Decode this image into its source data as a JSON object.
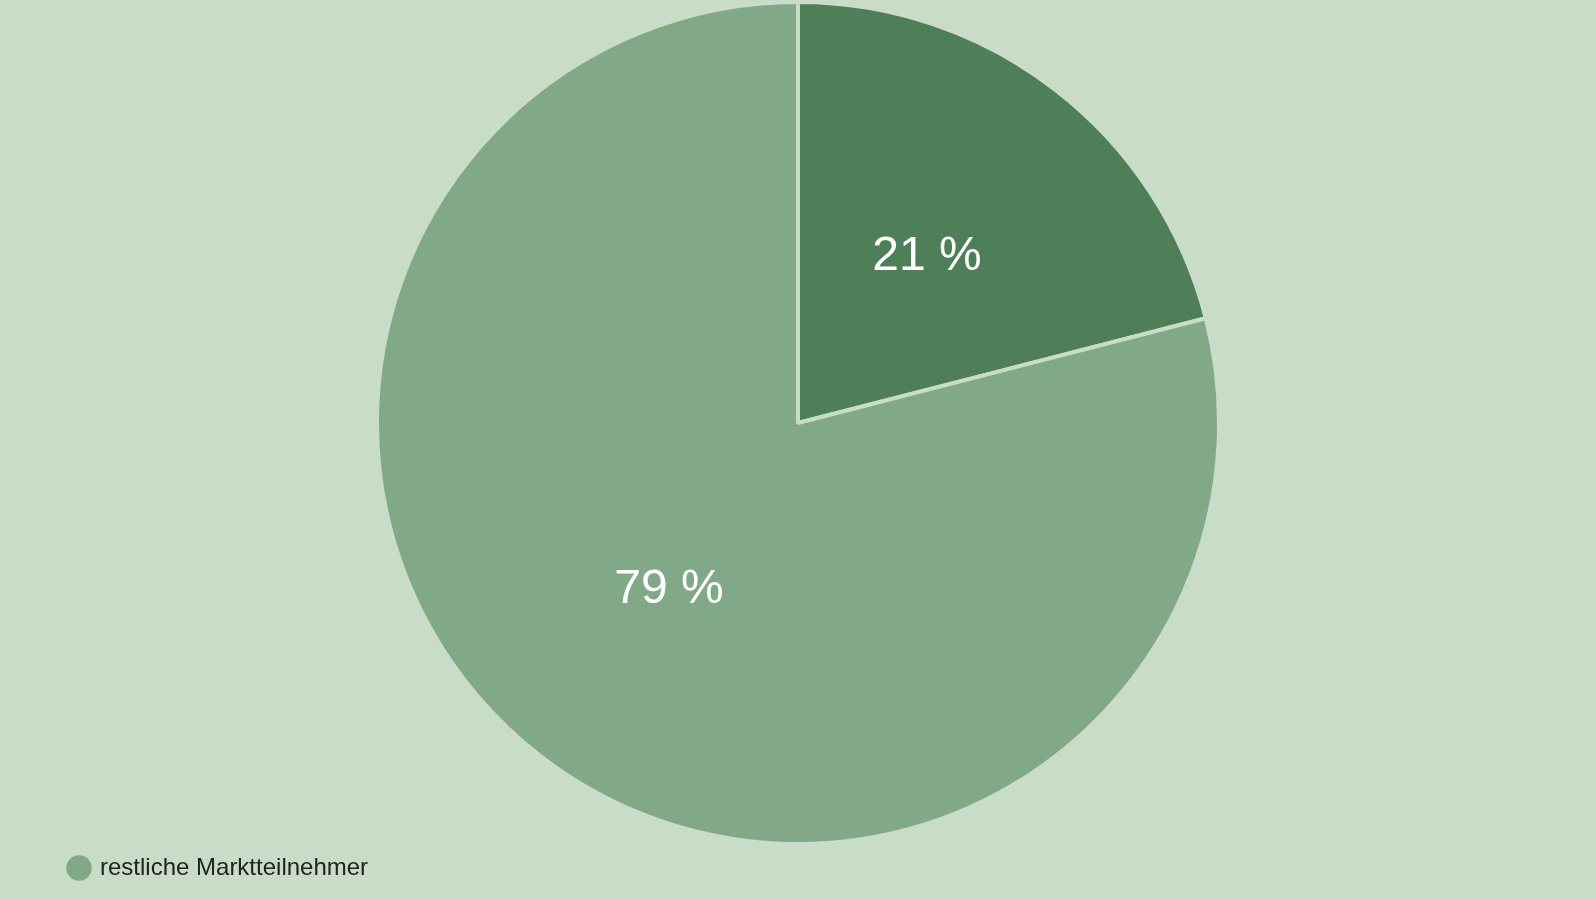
{
  "chart_data": {
    "type": "pie",
    "categories": [
      null,
      "restliche Marktteilnehmer"
    ],
    "values": [
      21,
      79
    ],
    "colors": [
      "#4f7f59",
      "#82a987"
    ],
    "value_labels": [
      "21 %",
      "79 %"
    ],
    "legend": "bottom left"
  }
}
